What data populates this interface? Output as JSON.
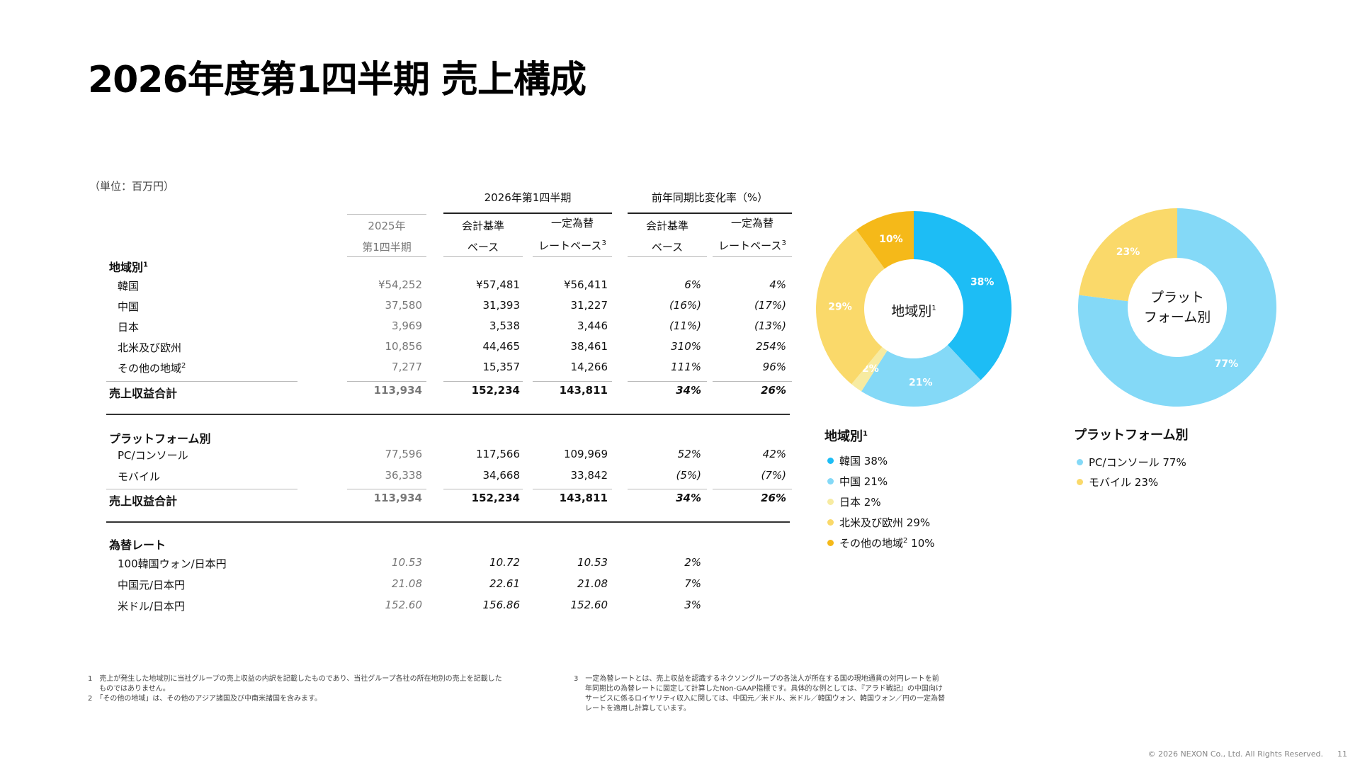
{
  "title": "2026年度第1四半期 売上構成",
  "unit": "（単位：百万円）",
  "header": {
    "group1": "2026年第1四半期",
    "group2": "前年同期比変化率（%）",
    "col0_l1": "2025年",
    "col0_l2": "第1四半期",
    "col1_l1": "会計基準",
    "col1_l2": "ベース",
    "col2_l1": "一定為替",
    "col2_l2": "レートベース",
    "col3_l1": "会計基準",
    "col3_l2": "ベース",
    "col4_l1": "一定為替",
    "col4_l2": "レートベース",
    "sup3": "3"
  },
  "region": {
    "label": "地域別",
    "sup": "1",
    "rows": [
      {
        "label": "韓国",
        "sup": "",
        "v": [
          "¥54,252",
          "¥57,481",
          "¥56,411",
          "6%",
          "4%"
        ]
      },
      {
        "label": "中国",
        "sup": "",
        "v": [
          "37,580",
          "31,393",
          "31,227",
          "(16%)",
          "(17%)"
        ]
      },
      {
        "label": "日本",
        "sup": "",
        "v": [
          "3,969",
          "3,538",
          "3,446",
          "(11%)",
          "(13%)"
        ]
      },
      {
        "label": "北米及び欧州",
        "sup": "",
        "v": [
          "10,856",
          "44,465",
          "38,461",
          "310%",
          "254%"
        ]
      },
      {
        "label": "その他の地域",
        "sup": "2",
        "v": [
          "7,277",
          "15,357",
          "14,266",
          "111%",
          "96%"
        ]
      }
    ],
    "total": {
      "label": "売上収益合計",
      "v": [
        "113,934",
        "152,234",
        "143,811",
        "34%",
        "26%"
      ]
    }
  },
  "platform": {
    "label": "プラットフォーム別",
    "rows": [
      {
        "label": "PC/コンソール",
        "v": [
          "77,596",
          "117,566",
          "109,969",
          "52%",
          "42%"
        ]
      },
      {
        "label": "モバイル",
        "v": [
          "36,338",
          "34,668",
          "33,842",
          "(5%)",
          "(7%)"
        ]
      }
    ],
    "total": {
      "label": "売上収益合計",
      "v": [
        "113,934",
        "152,234",
        "143,811",
        "34%",
        "26%"
      ]
    }
  },
  "fx": {
    "label": "為替レート",
    "rows": [
      {
        "label": "100韓国ウォン/日本円",
        "v": [
          "10.53",
          "10.72",
          "10.53",
          "2%"
        ]
      },
      {
        "label": "中国元/日本円",
        "v": [
          "21.08",
          "22.61",
          "21.08",
          "7%"
        ]
      },
      {
        "label": "米ドル/日本円",
        "v": [
          "152.60",
          "156.86",
          "152.60",
          "3%"
        ]
      }
    ]
  },
  "chart_data": [
    {
      "type": "pie",
      "title": "地域別",
      "title_sup": "1",
      "center_label": "地域別",
      "center_sup": "1",
      "categories": [
        "韓国",
        "中国",
        "日本",
        "北米及び欧州",
        "その他の地域"
      ],
      "category_sups": [
        "",
        "",
        "",
        "",
        "2"
      ],
      "values": [
        38,
        21,
        2,
        29,
        10
      ],
      "slice_labels": [
        "38%",
        "21%",
        "2%",
        "29%",
        "10%"
      ],
      "colors": [
        "#1dbdf5",
        "#84d9f7",
        "#f7eba1",
        "#fad96a",
        "#f5b919"
      ],
      "legend_values": [
        "38%",
        "21%",
        "2%",
        "29%",
        "10%"
      ]
    },
    {
      "type": "pie",
      "title": "プラットフォーム別",
      "center_label_l1": "プラット",
      "center_label_l2": "フォーム別",
      "categories": [
        "PC/コンソール",
        "モバイル"
      ],
      "values": [
        77,
        23
      ],
      "slice_labels": [
        "77%",
        "23%"
      ],
      "colors": [
        "#84d9f7",
        "#fad96a"
      ],
      "legend_values": [
        "77%",
        "23%"
      ]
    }
  ],
  "footnotes": {
    "n1_a": "1　売上が発生した地域別に当社グループの売上収益の内訳を記載したものであり、当社グループ各社の所在地別の売上を記載した",
    "n1_b": "ものではありません。",
    "n2": "2　「その他の地域」は、その他のアジア諸国及び中南米諸国を含みます。",
    "n3_a": "3　一定為替レートとは、売上収益を認識するネクソングループの各法人が所在する国の現地通貨の対円レートを前",
    "n3_b": "年同期比の為替レートに固定して計算したNon-GAAP指標です。具体的な例としては、『アラド戦記』の中国向け",
    "n3_c": "サービスに係るロイヤリティ収入に関しては、中国元／米ドル、米ドル／韓国ウォン、韓国ウォン／円の一定為替",
    "n3_d": "レートを適用し計算しています。"
  },
  "copyright": "© 2026 NEXON Co., Ltd. All Rights Reserved.",
  "page_number": "11"
}
